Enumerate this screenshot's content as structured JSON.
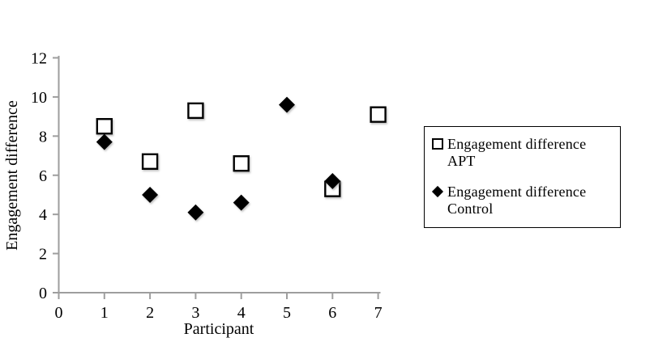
{
  "chart_data": {
    "type": "scatter",
    "title": "",
    "xlabel": "Participant",
    "ylabel": "Engagement difference",
    "xlim": [
      0,
      7
    ],
    "ylim": [
      0,
      12
    ],
    "x_ticks": [
      0,
      1,
      2,
      3,
      4,
      5,
      6,
      7
    ],
    "y_ticks": [
      0,
      2,
      4,
      6,
      8,
      10,
      12
    ],
    "grid": false,
    "legend_position": "right",
    "series": [
      {
        "name": "Engagement difference APT",
        "marker": "open-square",
        "marker_fill": "#ffffff",
        "marker_stroke": "#000000",
        "points": [
          {
            "x": 1,
            "y": 8.5
          },
          {
            "x": 2,
            "y": 6.7
          },
          {
            "x": 3,
            "y": 9.3
          },
          {
            "x": 4,
            "y": 6.6
          },
          {
            "x": 6,
            "y": 5.3
          },
          {
            "x": 7,
            "y": 9.1
          }
        ]
      },
      {
        "name": "Engagement difference Control",
        "marker": "filled-diamond",
        "marker_fill": "#000000",
        "marker_stroke": "#000000",
        "points": [
          {
            "x": 1,
            "y": 7.7
          },
          {
            "x": 2,
            "y": 5.0
          },
          {
            "x": 3,
            "y": 4.1
          },
          {
            "x": 4,
            "y": 4.6
          },
          {
            "x": 5,
            "y": 9.6
          },
          {
            "x": 6,
            "y": 5.7
          }
        ]
      }
    ],
    "colors": {
      "axis": "#9e9e9e",
      "text": "#000000",
      "background": "#ffffff"
    }
  },
  "legend": {
    "items": [
      {
        "marker": "open-square",
        "label": "Engagement difference APT"
      },
      {
        "marker": "filled-diamond",
        "label": "Engagement difference Control"
      }
    ]
  }
}
